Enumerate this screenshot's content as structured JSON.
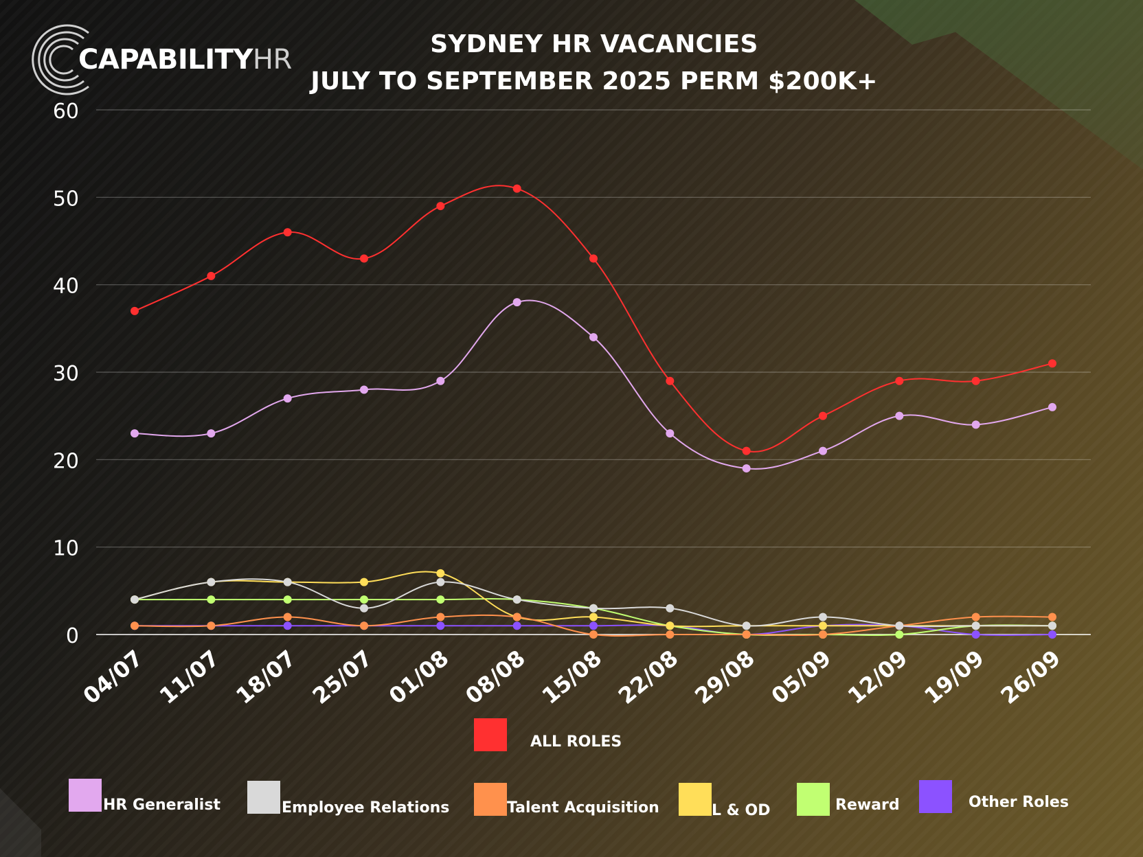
{
  "logo": {
    "text_main": "CAPABILITY",
    "text_suffix": "HR"
  },
  "chart_data": {
    "type": "line",
    "title": "SYDNEY HR VACANCIES",
    "subtitle": "JULY TO SEPTEMBER 2025 PERM  $200K+",
    "categories": [
      "04/07",
      "11/07",
      "18/07",
      "25/07",
      "01/08",
      "08/08",
      "15/08",
      "22/08",
      "29/08",
      "05/09",
      "12/09",
      "19/09",
      "26/09"
    ],
    "ylim": [
      0,
      60
    ],
    "yticks": [
      0,
      10,
      20,
      30,
      40,
      50,
      60
    ],
    "grid": true,
    "series": [
      {
        "name": "ALL ROLES",
        "color": "#ff3030",
        "values": [
          37,
          41,
          46,
          43,
          49,
          51,
          43,
          29,
          21,
          25,
          29,
          29,
          31
        ]
      },
      {
        "name": "HR Generalist",
        "color": "#e2a8ee",
        "values": [
          23,
          23,
          27,
          28,
          29,
          38,
          34,
          23,
          19,
          21,
          25,
          24,
          26
        ]
      },
      {
        "name": "Employee Relations",
        "color": "#d9d9d9",
        "values": [
          4,
          6,
          6,
          3,
          6,
          4,
          3,
          3,
          1,
          2,
          1,
          1,
          1
        ]
      },
      {
        "name": "Talent Acquisition",
        "color": "#ff914d",
        "values": [
          1,
          1,
          2,
          1,
          2,
          2,
          0,
          0,
          0,
          0,
          1,
          2,
          2
        ]
      },
      {
        "name": "L & OD",
        "color": "#ffde59",
        "values": [
          4,
          6,
          6,
          6,
          7,
          2,
          2,
          1,
          1,
          1,
          1,
          1,
          1
        ]
      },
      {
        "name": "Reward",
        "color": "#c1ff72",
        "values": [
          4,
          4,
          4,
          4,
          4,
          4,
          3,
          1,
          0,
          0,
          0,
          1,
          1
        ]
      },
      {
        "name": "Other Roles",
        "color": "#8c52ff",
        "values": [
          1,
          1,
          1,
          1,
          1,
          1,
          1,
          1,
          0,
          1,
          1,
          0,
          0
        ]
      }
    ]
  }
}
